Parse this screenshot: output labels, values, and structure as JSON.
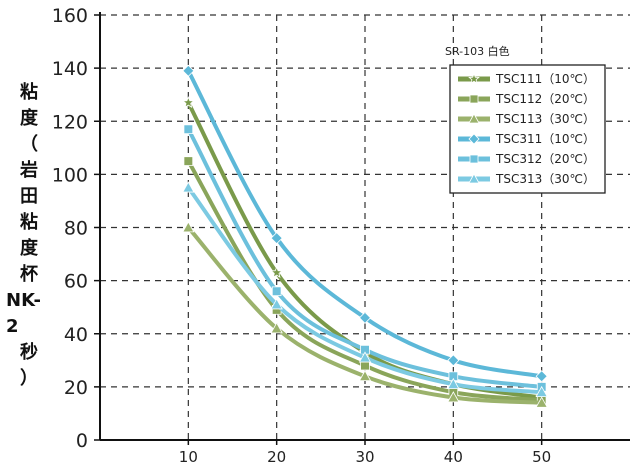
{
  "chart_data": {
    "type": "line",
    "title": "SR-103 白色",
    "ylabel": "粘度（岩田粘度杯NK-2秒）",
    "ylabel_lines": [
      "粘",
      "度",
      "（",
      "岩",
      "田",
      "粘",
      "度",
      "杯",
      "NK-2",
      "秒",
      "）"
    ],
    "xlabel": "",
    "x": [
      10,
      20,
      30,
      40,
      50
    ],
    "x_ticks": [
      10,
      20,
      30,
      40,
      50
    ],
    "y_ticks": [
      0,
      20,
      40,
      60,
      80,
      100,
      120,
      140,
      160
    ],
    "ylim": [
      0,
      160
    ],
    "xlim": [
      0,
      60
    ],
    "grid": true,
    "legend_position": "top-right",
    "series": [
      {
        "name": "TSC111（10℃）",
        "values": [
          127,
          63,
          33,
          21,
          16
        ],
        "color": "#7a9a4a",
        "marker": "star"
      },
      {
        "name": "TSC112（20℃）",
        "values": [
          105,
          49,
          28,
          18,
          15
        ],
        "color": "#8aa55a",
        "marker": "square"
      },
      {
        "name": "TSC113（30℃）",
        "values": [
          80,
          42,
          24,
          16,
          14
        ],
        "color": "#9bb26c",
        "marker": "triangle"
      },
      {
        "name": "TSC311（10℃）",
        "values": [
          139,
          76,
          46,
          30,
          24
        ],
        "color": "#5cb8d8",
        "marker": "diamond"
      },
      {
        "name": "TSC312（20℃）",
        "values": [
          117,
          56,
          34,
          24,
          20
        ],
        "color": "#6cc0dc",
        "marker": "square"
      },
      {
        "name": "TSC313（30℃）",
        "values": [
          95,
          51,
          31,
          21,
          18
        ],
        "color": "#7ccae2",
        "marker": "triangle"
      }
    ]
  }
}
